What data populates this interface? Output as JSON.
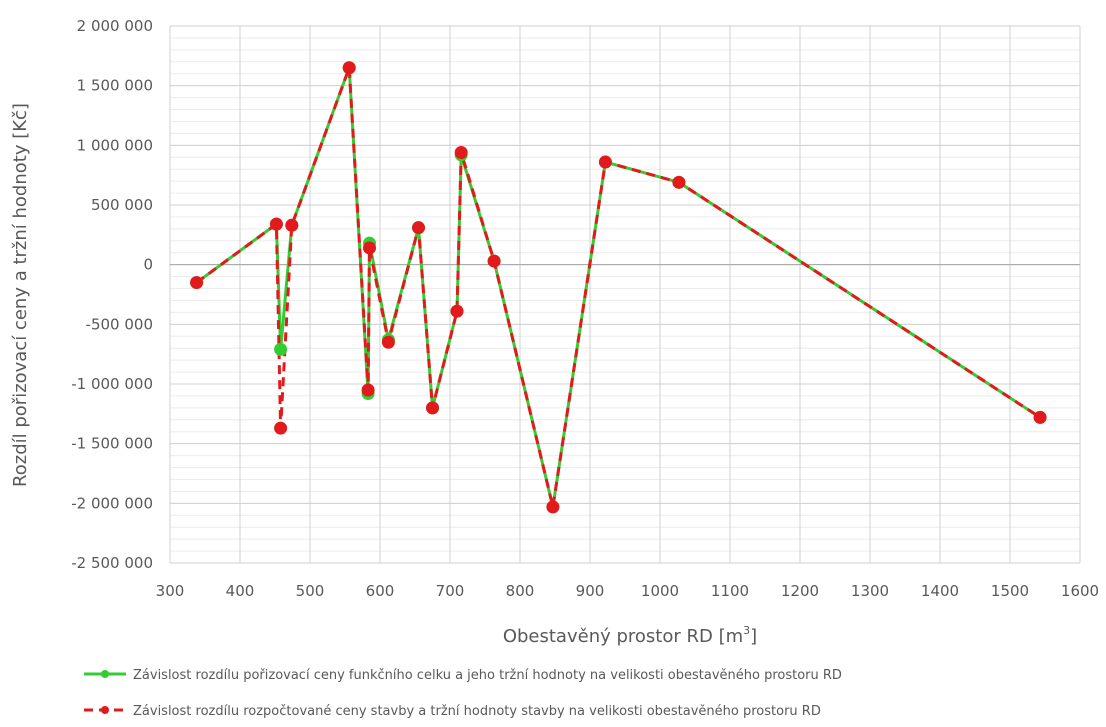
{
  "chart_data": {
    "type": "line",
    "xlabel": {
      "text": "Obestavěný prostor RD [m",
      "sup": "3",
      "suffix": "]"
    },
    "ylabel": "Rozdíl pořizovací ceny a tržní hodnoty [Kč]",
    "xlim": [
      300,
      1600
    ],
    "ylim": [
      -2500000,
      2000000
    ],
    "x_ticks": [
      300,
      400,
      500,
      600,
      700,
      800,
      900,
      1000,
      1100,
      1200,
      1300,
      1400,
      1500,
      1600
    ],
    "x_tick_labels": [
      "300",
      "400",
      "500",
      "600",
      "700",
      "800",
      "900",
      "1000",
      "1100",
      "1200",
      "1300",
      "1400",
      "1500",
      "1600"
    ],
    "y_ticks": [
      2000000,
      1500000,
      1000000,
      500000,
      0,
      -500000,
      -1000000,
      -1500000,
      -2000000,
      -2500000
    ],
    "y_tick_labels": [
      "2 000 000",
      "1 500 000",
      "1 000 000",
      "500 000",
      "0",
      "-500 000",
      "-1 000 000",
      "-1 500 000",
      "-2 000 000",
      "-2 500 000"
    ],
    "grid": true,
    "minor_grid": true,
    "legend_position": "bottom",
    "series": [
      {
        "name": "Závislost rozdílu pořizovací ceny funkčního celku a jeho tržní hodnoty na velikosti obestavěného prostoru RD",
        "color": "#33cc33",
        "style": "solid",
        "points": [
          [
            338,
            -150000
          ],
          [
            452,
            340000
          ],
          [
            458,
            -710000
          ],
          [
            474,
            330000
          ],
          [
            556,
            1650000
          ],
          [
            583,
            -1080000
          ],
          [
            585,
            180000
          ],
          [
            612,
            -630000
          ],
          [
            655,
            310000
          ],
          [
            675,
            -1200000
          ],
          [
            710,
            -390000
          ],
          [
            716,
            920000
          ],
          [
            763,
            30000
          ],
          [
            847,
            -2030000
          ],
          [
            922,
            860000
          ],
          [
            1027,
            690000
          ],
          [
            1543,
            -1280000
          ]
        ]
      },
      {
        "name": "Závislost rozdílu rozpočtované ceny stavby a tržní hodnoty stavby na velikosti obestavěného prostoru RD",
        "color": "#e31a1c",
        "style": "dashed",
        "points": [
          [
            338,
            -150000
          ],
          [
            452,
            340000
          ],
          [
            458,
            -1370000
          ],
          [
            474,
            330000
          ],
          [
            556,
            1650000
          ],
          [
            583,
            -1050000
          ],
          [
            585,
            140000
          ],
          [
            612,
            -650000
          ],
          [
            655,
            310000
          ],
          [
            675,
            -1200000
          ],
          [
            710,
            -390000
          ],
          [
            716,
            940000
          ],
          [
            763,
            30000
          ],
          [
            847,
            -2030000
          ],
          [
            922,
            860000
          ],
          [
            1027,
            690000
          ],
          [
            1543,
            -1280000
          ]
        ]
      }
    ]
  }
}
